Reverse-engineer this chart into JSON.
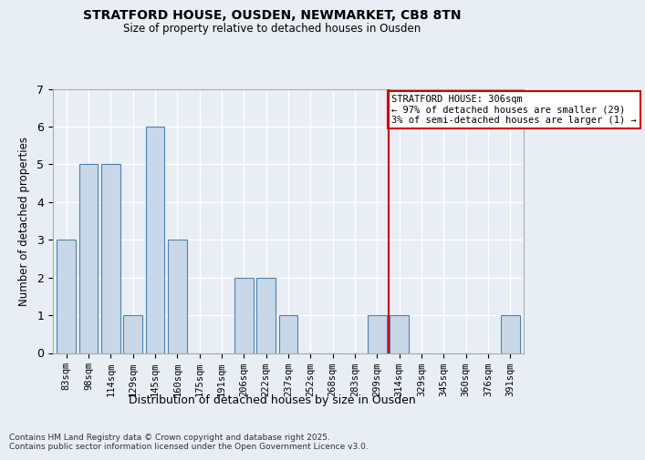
{
  "title": "STRATFORD HOUSE, OUSDEN, NEWMARKET, CB8 8TN",
  "subtitle": "Size of property relative to detached houses in Ousden",
  "xlabel": "Distribution of detached houses by size in Ousden",
  "ylabel": "Number of detached properties",
  "categories": [
    "83sqm",
    "98sqm",
    "114sqm",
    "129sqm",
    "145sqm",
    "160sqm",
    "175sqm",
    "191sqm",
    "206sqm",
    "222sqm",
    "237sqm",
    "252sqm",
    "268sqm",
    "283sqm",
    "299sqm",
    "314sqm",
    "329sqm",
    "345sqm",
    "360sqm",
    "376sqm",
    "391sqm"
  ],
  "values": [
    3,
    5,
    5,
    1,
    6,
    3,
    0,
    0,
    2,
    2,
    1,
    0,
    0,
    0,
    1,
    1,
    0,
    0,
    0,
    0,
    1
  ],
  "bar_color": "#c8d8e8",
  "bar_edge_color": "#5080b0",
  "bg_color": "#e8eef4",
  "grid_color": "#ffffff",
  "vline_x_index": 14.5,
  "vline_color": "#cc0000",
  "annotation_text": "STRATFORD HOUSE: 306sqm\n← 97% of detached houses are smaller (29)\n3% of semi-detached houses are larger (1) →",
  "annotation_box_color": "#cc0000",
  "footnote": "Contains HM Land Registry data © Crown copyright and database right 2025.\nContains public sector information licensed under the Open Government Licence v3.0.",
  "ylim": [
    0,
    7
  ],
  "yticks": [
    0,
    1,
    2,
    3,
    4,
    5,
    6,
    7
  ]
}
